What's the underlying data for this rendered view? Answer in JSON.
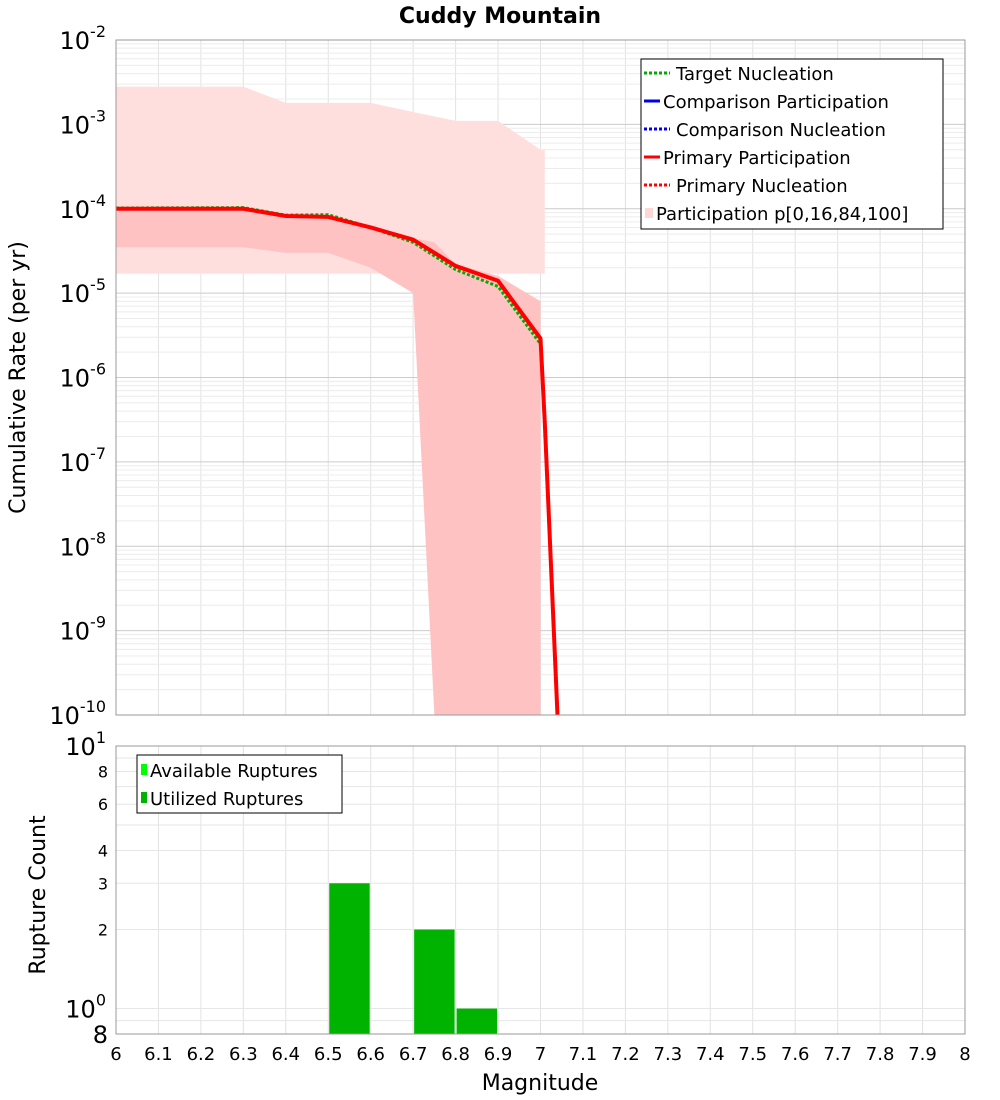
{
  "chart_data": [
    {
      "type": "line",
      "title": "Cuddy Mountain",
      "xlabel": "",
      "ylabel": "Cumulative Rate (per yr)",
      "xlim": [
        6,
        8
      ],
      "ylim": [
        1e-10,
        0.01
      ],
      "yscale": "log",
      "grid": true,
      "legend_position": "top-right",
      "colors": {
        "target_nucleation": "#00aa00",
        "comparison": "#0000ee",
        "primary": "#ff0000",
        "band": "#ffb3b3"
      },
      "legend": [
        "Target Nucleation",
        "Comparison Participation",
        "Comparison Nucleation",
        "Primary Participation",
        "Primary Nucleation",
        "Participation p[0,16,84,100]"
      ],
      "series": [
        {
          "name": "Primary Participation",
          "x": [
            6.0,
            6.3,
            6.4,
            6.5,
            6.6,
            6.7,
            6.8,
            6.9,
            7.0,
            7.01,
            7.04
          ],
          "y": [
            0.0001,
            0.0001,
            8.2e-05,
            8e-05,
            6e-05,
            4.3e-05,
            2.1e-05,
            1.4e-05,
            2.9e-06,
            3e-07,
            1e-10
          ]
        },
        {
          "name": "Target Nucleation",
          "x": [
            6.0,
            6.3,
            6.4,
            6.5,
            6.6,
            6.7,
            6.8,
            6.9,
            7.0,
            7.01,
            7.04
          ],
          "y": [
            0.000102,
            0.000103,
            8.4e-05,
            8.5e-05,
            6e-05,
            4e-05,
            1.9e-05,
            1.2e-05,
            2.5e-06,
            3e-07,
            1e-10
          ]
        }
      ],
      "bands": [
        {
          "name": "Participation p[0,100]",
          "x": [
            6.0,
            6.3,
            6.4,
            6.6,
            6.7,
            6.8,
            6.9,
            7.0,
            7.01
          ],
          "upper": [
            0.0028,
            0.0028,
            0.0018,
            0.0018,
            0.0014,
            0.0011,
            0.0011,
            0.0005,
            0.0005
          ],
          "lower": [
            1.7e-05,
            1.7e-05,
            1.7e-05,
            1.7e-05,
            1.7e-05,
            1.7e-05,
            1.7e-05,
            1.7e-05,
            1.7e-05
          ]
        },
        {
          "name": "Participation p[16,84]",
          "x": [
            6.0,
            6.3,
            6.4,
            6.5,
            6.6,
            6.7,
            6.75,
            6.8,
            6.9,
            7.0
          ],
          "upper": [
            0.0001,
            0.0001,
            8e-05,
            8e-05,
            6e-05,
            4.5e-05,
            4e-05,
            2.2e-05,
            1.6e-05,
            8e-06
          ],
          "lower": [
            3.5e-05,
            3.5e-05,
            3e-05,
            3e-05,
            2e-05,
            1e-05,
            1e-10,
            1e-10,
            1e-10,
            1e-10
          ]
        }
      ]
    },
    {
      "type": "bar",
      "xlabel": "Magnitude",
      "ylabel": "Rupture Count",
      "xlim": [
        6,
        8
      ],
      "ylim": [
        0.8,
        10
      ],
      "yscale": "log",
      "grid": true,
      "legend_position": "top-left",
      "legend": [
        "Available Ruptures",
        "Utilized Ruptures"
      ],
      "colors": {
        "available": "#00ff00",
        "utilized": "#00b300"
      },
      "bars": [
        {
          "x_start": 6.5,
          "x_end": 6.6,
          "value": 3
        },
        {
          "x_start": 6.7,
          "x_end": 6.8,
          "value": 2
        },
        {
          "x_start": 6.8,
          "x_end": 6.9,
          "value": 1
        }
      ]
    }
  ],
  "x_ticks": [
    "6",
    "6.1",
    "6.2",
    "6.3",
    "6.4",
    "6.5",
    "6.6",
    "6.7",
    "6.8",
    "6.9",
    "7",
    "7.1",
    "7.2",
    "7.3",
    "7.4",
    "7.5",
    "7.6",
    "7.7",
    "7.8",
    "7.9",
    "8"
  ],
  "top_y_ticks": [
    {
      "base": "10",
      "exp": "-2"
    },
    {
      "base": "10",
      "exp": "-3"
    },
    {
      "base": "10",
      "exp": "-4"
    },
    {
      "base": "10",
      "exp": "-5"
    },
    {
      "base": "10",
      "exp": "-6"
    },
    {
      "base": "10",
      "exp": "-7"
    },
    {
      "base": "10",
      "exp": "-8"
    },
    {
      "base": "10",
      "exp": "-9"
    },
    {
      "base": "10",
      "exp": "-10"
    }
  ],
  "bottom_y_ticks": [
    {
      "base": "10",
      "exp": "1"
    },
    {
      "label": "8"
    },
    {
      "label": "6"
    },
    {
      "label": "4"
    },
    {
      "label": "3"
    },
    {
      "label": "2"
    },
    {
      "base": "10",
      "exp": "0"
    },
    {
      "label": "8"
    }
  ]
}
